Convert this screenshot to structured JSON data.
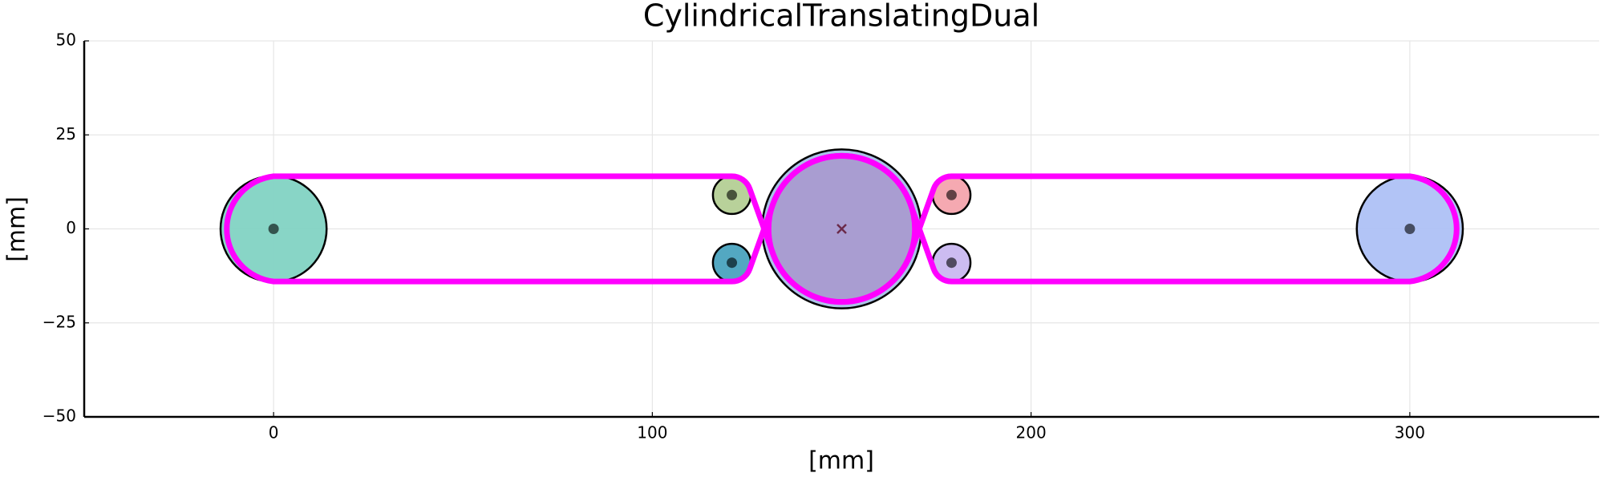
{
  "chart_data": {
    "type": "belt-drive",
    "title": "CylindricalTranslatingDual",
    "xlabel": "[mm]",
    "ylabel": "[mm]",
    "xlim": [
      -50,
      350
    ],
    "ylim": [
      -50,
      50
    ],
    "xticks": [
      0,
      100,
      200,
      300
    ],
    "yticks": [
      {
        "value": -50,
        "label": "−50"
      },
      {
        "value": -25,
        "label": "−25"
      },
      0,
      25,
      50
    ],
    "grid": true,
    "pulleys": [
      {
        "x": 0,
        "y": 0,
        "r": 14,
        "color": "#82d3c3"
      },
      {
        "x": 121,
        "y": 9,
        "r": 5,
        "color": "#b4cf95"
      },
      {
        "x": 121,
        "y": -9,
        "r": 5,
        "color": "#4aa3bf"
      },
      {
        "x": 150,
        "y": 0,
        "r": 21,
        "color": "#a8bfe8"
      },
      {
        "x": 150,
        "y": 0,
        "r": 19.3,
        "color": "#a99bd0"
      },
      {
        "x": 179,
        "y": 9,
        "r": 5,
        "color": "#f4a4ad"
      },
      {
        "x": 179,
        "y": -9,
        "r": 5,
        "color": "#c9b8f0"
      },
      {
        "x": 300,
        "y": 0,
        "r": 14,
        "color": "#aec1f5"
      }
    ],
    "belts": [
      {
        "color": "#ff00ff",
        "route": [
          [
            0,
            "cw"
          ],
          [
            1,
            "cw"
          ],
          [
            4,
            "ccw"
          ],
          [
            2,
            "cw"
          ]
        ]
      },
      {
        "color": "#ff00ff",
        "route": [
          [
            7,
            "ccw"
          ],
          [
            5,
            "ccw"
          ],
          [
            4,
            "cw"
          ],
          [
            6,
            "ccw"
          ]
        ]
      }
    ],
    "marker": {
      "x": 150,
      "y": 0,
      "color": "#6b2a4a"
    }
  }
}
